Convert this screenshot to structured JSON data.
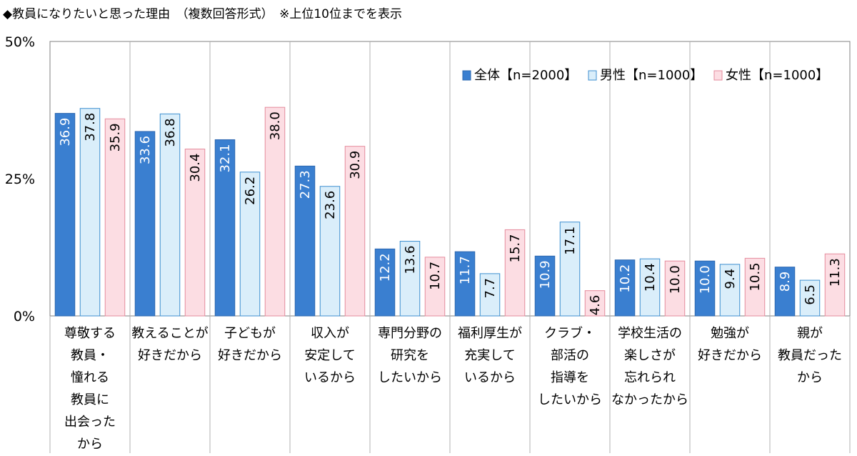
{
  "chart_data": {
    "type": "bar",
    "title": "◆教員になりたいと思った理由　（複数回答形式）　※上位10位までを表示",
    "xlabel": "",
    "ylabel": "",
    "ylim": [
      0,
      50
    ],
    "yticks": [
      "0%",
      "25%",
      "50%"
    ],
    "ytick_values": [
      0,
      25,
      50
    ],
    "legend_position": "top-right",
    "grid": "vertical category separators",
    "categories": [
      [
        "尊敬する",
        "教員・",
        "憧れる",
        "教員に",
        "出会った",
        "から"
      ],
      [
        "教えることが",
        "好きだから"
      ],
      [
        "子どもが",
        "好きだから"
      ],
      [
        "収入が",
        "安定して",
        "いるから"
      ],
      [
        "専門分野の",
        "研究を",
        "したいから"
      ],
      [
        "福利厚生が",
        "充実して",
        "いるから"
      ],
      [
        "クラブ・",
        "部活の",
        "指導を",
        "したいから"
      ],
      [
        "学校生活の",
        "楽しさが",
        "忘れられ",
        "なかったから"
      ],
      [
        "勉強が",
        "好きだから"
      ],
      [
        "親が",
        "教員だった",
        "から"
      ]
    ],
    "series": [
      {
        "name": "全体【n=2000】",
        "color": "#3a7fd0",
        "stroke": "#2d68b0",
        "label_color": "#ffffff",
        "values": [
          36.9,
          33.6,
          32.1,
          27.3,
          12.2,
          11.7,
          10.9,
          10.2,
          10.0,
          8.9
        ],
        "labels": [
          "36.9",
          "33.6",
          "32.1",
          "27.3",
          "12.2",
          "11.7",
          "10.9",
          "10.2",
          "10.0",
          "8.9"
        ]
      },
      {
        "name": "男性【n=1000】",
        "color": "#daeefa",
        "stroke": "#3d8fd0",
        "label_color": "#000000",
        "values": [
          37.8,
          36.8,
          26.2,
          23.6,
          13.6,
          7.7,
          17.1,
          10.4,
          9.4,
          6.5
        ],
        "labels": [
          "37.8",
          "36.8",
          "26.2",
          "23.6",
          "13.6",
          "7.7",
          "17.1",
          "10.4",
          "9.4",
          "6.5"
        ]
      },
      {
        "name": "女性【n=1000】",
        "color": "#fcdde3",
        "stroke": "#e58b9c",
        "label_color": "#000000",
        "values": [
          35.9,
          30.4,
          38.0,
          30.9,
          10.7,
          15.7,
          4.6,
          10.0,
          10.5,
          11.3
        ],
        "labels": [
          "35.9",
          "30.4",
          "38.0",
          "30.9",
          "10.7",
          "15.7",
          "4.6",
          "10.0",
          "10.5",
          "11.3"
        ]
      }
    ]
  }
}
